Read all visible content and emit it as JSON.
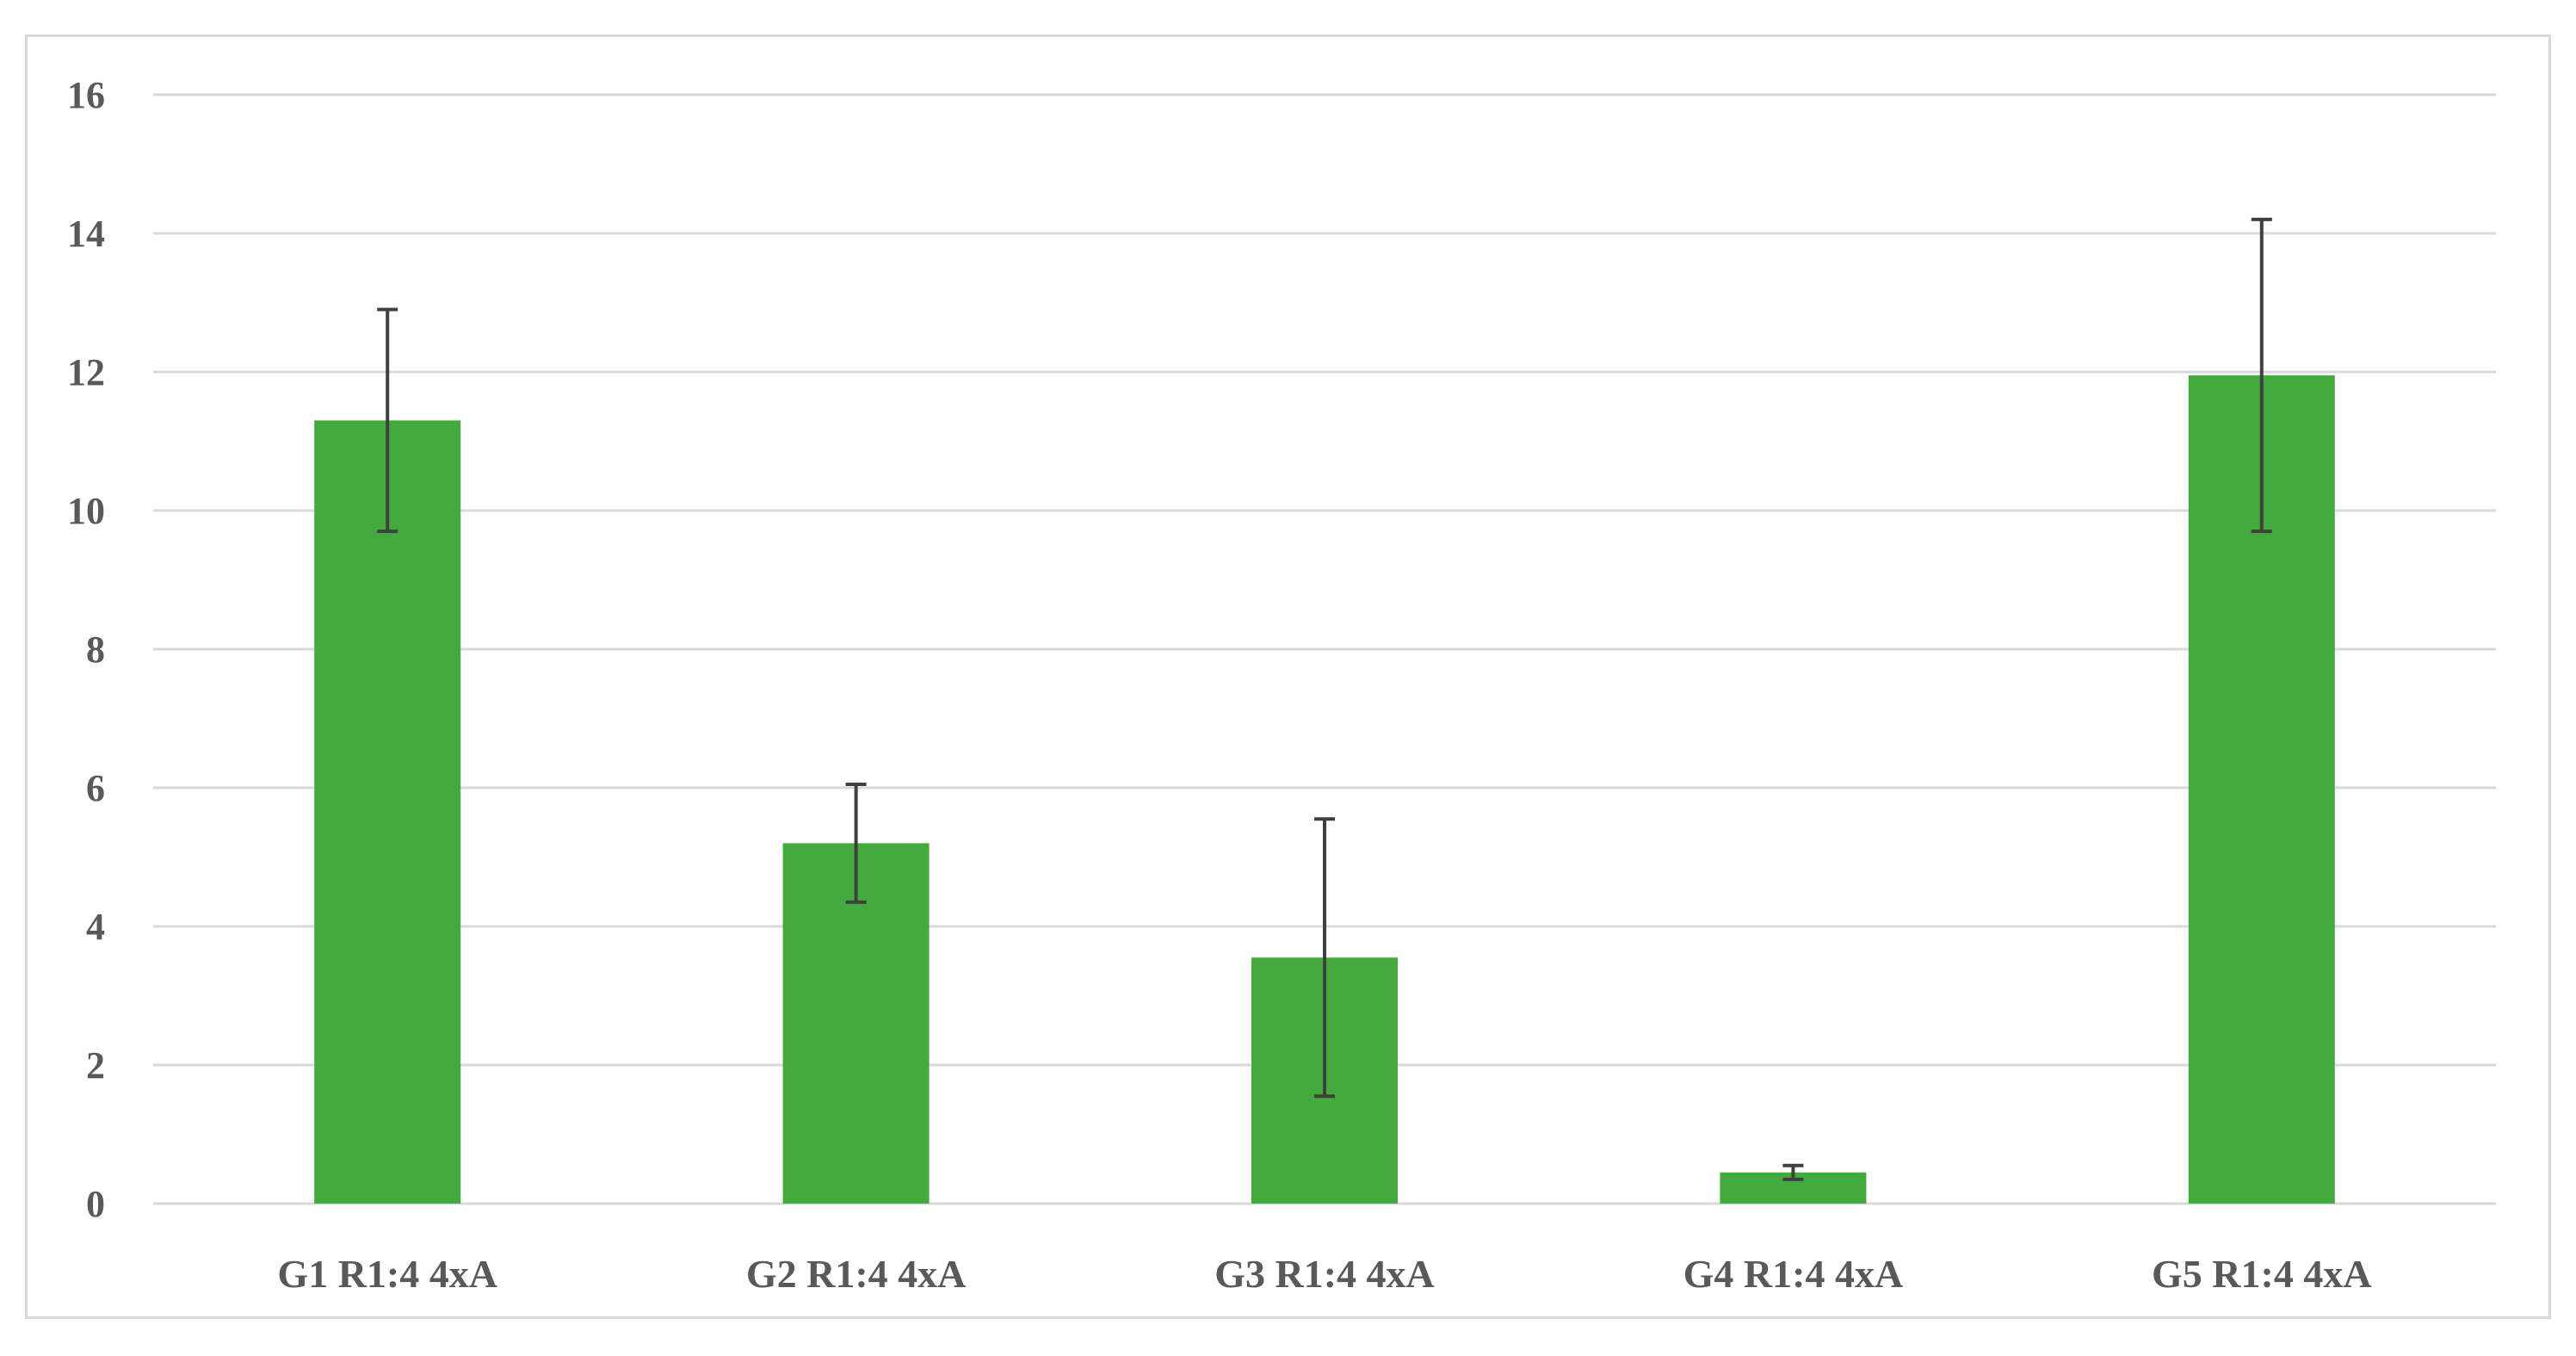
{
  "chart_data": {
    "type": "bar",
    "title": "",
    "xlabel": "",
    "ylabel": "",
    "categories": [
      "G1 R1:4 4xA",
      "G2 R1:4 4xA",
      "G3 R1:4 4xA",
      "G4 R1:4 4xA",
      "G5 R1:4 4xA"
    ],
    "values": [
      11.3,
      5.2,
      3.55,
      0.45,
      11.95
    ],
    "error": [
      1.6,
      0.85,
      2.0,
      0.1,
      2.25
    ],
    "ylim": [
      0,
      16
    ],
    "yticks": [
      "0",
      "2",
      "4",
      "6",
      "8",
      "10",
      "12",
      "14",
      "16"
    ],
    "ytick_values": [
      0,
      2,
      4,
      6,
      8,
      10,
      12,
      14,
      16
    ],
    "grid": true,
    "legend": "none",
    "colors": {
      "bar": "#43ab3d",
      "error_bar": "#404040",
      "grid": "#d9d9d9",
      "text": "#595959"
    }
  }
}
